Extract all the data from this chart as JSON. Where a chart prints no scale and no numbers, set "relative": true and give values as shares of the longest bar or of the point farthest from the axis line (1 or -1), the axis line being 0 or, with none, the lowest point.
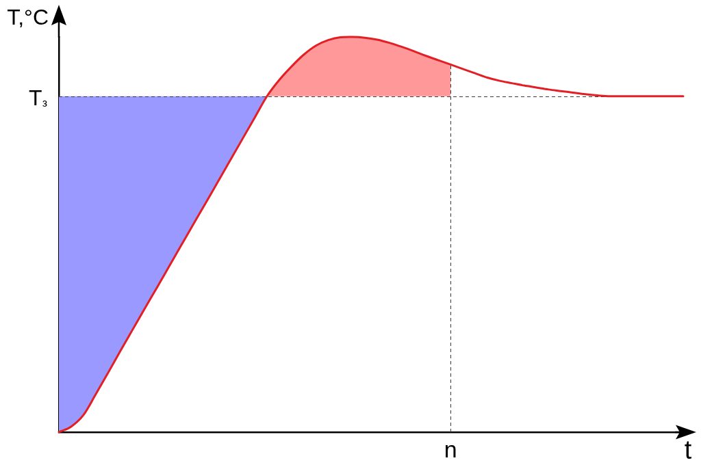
{
  "chart_data": {
    "type": "line",
    "relative": true,
    "xlabel": "t",
    "ylabel": "T,°C",
    "categories": [
      null,
      null,
      null,
      null,
      null,
      null,
      null,
      null,
      null,
      null,
      null,
      null,
      null,
      null,
      null,
      null,
      null,
      null,
      null,
      null,
      null,
      null,
      null,
      null,
      null,
      null,
      null,
      null,
      null,
      null,
      null,
      null,
      null,
      null,
      null,
      null,
      null,
      null,
      null,
      null,
      null,
      null,
      null,
      null,
      null,
      null,
      null,
      null,
      null,
      null,
      null,
      null
    ],
    "series": [
      {
        "color": "#e31e24",
        "values": [
          0,
          0.014,
          0.043,
          0.095,
          0.149,
          0.204,
          0.258,
          0.312,
          0.365,
          0.419,
          0.473,
          0.527,
          0.58,
          0.634,
          0.688,
          0.742,
          0.796,
          0.85,
          0.891,
          0.925,
          0.955,
          0.978,
          0.992,
          0.999,
          1,
          0.998,
          0.993,
          0.985,
          0.975,
          0.964,
          0.952,
          0.941,
          0.93,
          0.919,
          0.908,
          0.897,
          0.889,
          0.883,
          0.877,
          0.872,
          0.867,
          0.863,
          0.859,
          0.855,
          0.852,
          0.85,
          0.85,
          0.85,
          0.85,
          0.85,
          0.85,
          0.85
        ]
      },
      {
        "type": "area",
        "color": "#9999ff",
        "values": [
          0.85,
          0.85,
          0.85,
          0.85,
          0.85,
          0.85,
          0.85,
          0.85,
          0.85,
          0.85,
          0.85,
          0.85,
          0.85,
          0.85,
          0.85,
          0.85,
          0.85,
          0.85,
          null,
          null,
          null,
          null,
          null,
          null,
          null,
          null,
          null,
          null,
          null,
          null,
          null,
          null,
          null,
          null,
          null,
          null,
          null,
          null,
          null,
          null,
          null,
          null,
          null,
          null,
          null,
          null,
          null,
          null,
          null,
          null,
          null,
          null
        ]
      },
      {
        "type": "area",
        "color": "#ff9999",
        "values": [
          null,
          null,
          null,
          null,
          null,
          null,
          null,
          null,
          null,
          null,
          null,
          null,
          null,
          null,
          null,
          null,
          null,
          0.85,
          0.891,
          0.925,
          0.955,
          0.978,
          0.992,
          0.999,
          1,
          0.998,
          0.993,
          0.985,
          0.975,
          0.964,
          0.952,
          0.941,
          0.93,
          null,
          null,
          null,
          null,
          null,
          null,
          null,
          null,
          null,
          null,
          null,
          null,
          null,
          null,
          null,
          null,
          null,
          null,
          null
        ]
      }
    ],
    "ref_lines": [
      {
        "axis": "y",
        "value": 0.85,
        "label": "T$_{з}$",
        "color": "#3a3a3a",
        "line_style": "dashed"
      }
    ],
    "annotations": [
      "n"
    ]
  }
}
